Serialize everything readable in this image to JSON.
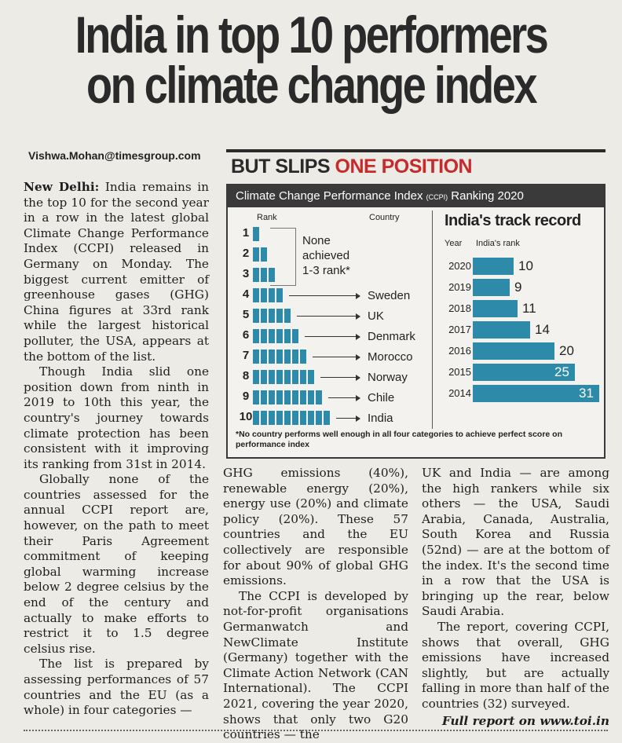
{
  "headline": {
    "line1": "India in top 10 performers",
    "line2": "on climate change index"
  },
  "byline": "Vishwa.Mohan@timesgroup.com",
  "infographic": {
    "heading_a": "BUT SLIPS ",
    "heading_b": "ONE POSITION",
    "title": "Climate Change Performance Index ",
    "title_small": "(CCPI)",
    "title_end": " Ranking 2020",
    "rank_label": "Rank",
    "country_label": "Country",
    "none_note": [
      "None",
      "achieved",
      "1-3 rank*"
    ],
    "ranks": [
      {
        "rank": "1",
        "country": ""
      },
      {
        "rank": "2",
        "country": ""
      },
      {
        "rank": "3",
        "country": ""
      },
      {
        "rank": "4",
        "country": "Sweden"
      },
      {
        "rank": "5",
        "country": "UK"
      },
      {
        "rank": "6",
        "country": "Denmark"
      },
      {
        "rank": "7",
        "country": "Morocco"
      },
      {
        "rank": "8",
        "country": "Norway"
      },
      {
        "rank": "9",
        "country": "Chile"
      },
      {
        "rank": "10",
        "country": "India"
      }
    ],
    "track_title": "India's track record",
    "year_label": "Year",
    "india_rank_label": "India's rank",
    "track": [
      {
        "year": "2020",
        "rank": 10
      },
      {
        "year": "2019",
        "rank": 9
      },
      {
        "year": "2018",
        "rank": 11
      },
      {
        "year": "2017",
        "rank": 14
      },
      {
        "year": "2016",
        "rank": 20
      },
      {
        "year": "2015",
        "rank": 25
      },
      {
        "year": "2014",
        "rank": 31
      }
    ],
    "footnote": "*No country performs well enough in all four categories to achieve perfect score on performance index",
    "bar_color": "#2d8aa8",
    "accent_color": "#c8292a"
  },
  "article": {
    "dateline": "New Delhi:",
    "p1": "India remains in the top 10 for the second year in a row in the latest global Climate Change Performance Index (CCPI) released in Germany on Monday. The biggest current emitter of greenhouse gases (GHG) China figures at 33rd rank while the largest historical polluter, the USA, appears at the bottom of the list.",
    "p2": "Though India slid one position down from ninth in 2019 to 10th this year, the country's journey towards climate protection has been consistent with it improving its ranking from 31st in 2014.",
    "p3": "Globally none of the countries assessed for the annual CCPI report are, however, on the path to meet their Paris Agreement commitment of keeping global warming increase below 2 degree celsius by the end of the century and actually to make efforts to restrict it to 1.5 degree celsius rise.",
    "p4": "The list is prepared by assessing performances of 57 countries and the EU (as a whole) in four categories —",
    "p5": "GHG emissions (40%), renewable energy (20%), energy use (20%) and climate policy (20%). These 57 countries and the EU collectively are responsible for about 90% of global GHG emissions.",
    "p6": "The CCPI is developed by not-for-profit organisations Germanwatch and NewClimate Institute (Germany) together with the Climate Action Network (CAN International). The CCPI 2021, covering the year 2020, shows that only two G20 countries — the",
    "p7": "UK and India — are among the high rankers while six others — the USA, Saudi Arabia, Canada, Australia, South Korea and Russia (52nd) — are at the bottom of the index. It's the second time in a row that the USA is bringing up the rear, below Saudi Arabia.",
    "p8": "The report, covering CCPI, shows that overall, GHG emissions have increased slightly, but are actually falling in more than half of the countries (32) surveyed.",
    "footer_link": "Full report on www.toi.in"
  }
}
